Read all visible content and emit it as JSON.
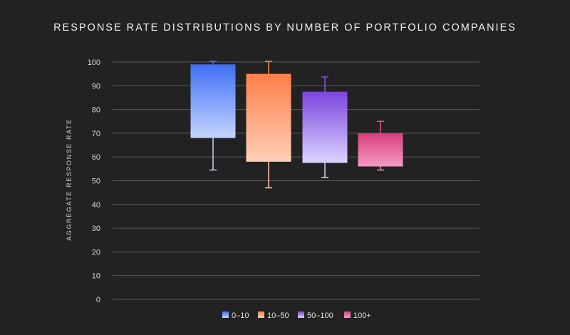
{
  "chart_data": {
    "type": "box",
    "title": "RESPONSE RATE DISTRIBUTIONS BY NUMBER OF PORTFOLIO COMPANIES",
    "xlabel": "",
    "ylabel": "AGGREGATE RESPONSE RATE",
    "ylim": [
      0,
      100
    ],
    "yticks": [
      0,
      10,
      20,
      30,
      40,
      50,
      60,
      70,
      80,
      90,
      100
    ],
    "grid": true,
    "legend_position": "bottom-center",
    "series": [
      {
        "name": "0–10",
        "min": 54.5,
        "q1": 68,
        "q3": 99,
        "max": 100.3,
        "color_top": "#3f6ff5",
        "color_bottom": "#c5d5ff",
        "whisker": "#4a74f0",
        "lower_whisker": "#c5d0f5"
      },
      {
        "name": "10–50",
        "min": 47,
        "q1": 58,
        "q3": 95,
        "max": 100.3,
        "color_top": "#ff7f4a",
        "color_bottom": "#ffd0b8",
        "whisker": "#ff8a55",
        "lower_whisker": "#ffc7aa"
      },
      {
        "name": "50–100",
        "min": 51.3,
        "q1": 57.5,
        "q3": 87.5,
        "max": 93.7,
        "color_top": "#7a45dd",
        "color_bottom": "#dcd3ff",
        "whisker": "#8250e0",
        "lower_whisker": "#d2c8f5"
      },
      {
        "name": "100+",
        "min": 54.5,
        "q1": 56,
        "q3": 70,
        "max": 75,
        "color_top": "#d83f7c",
        "color_bottom": "#f59ac4",
        "whisker": "#e0588f",
        "lower_whisker": "#f09abb"
      }
    ]
  }
}
